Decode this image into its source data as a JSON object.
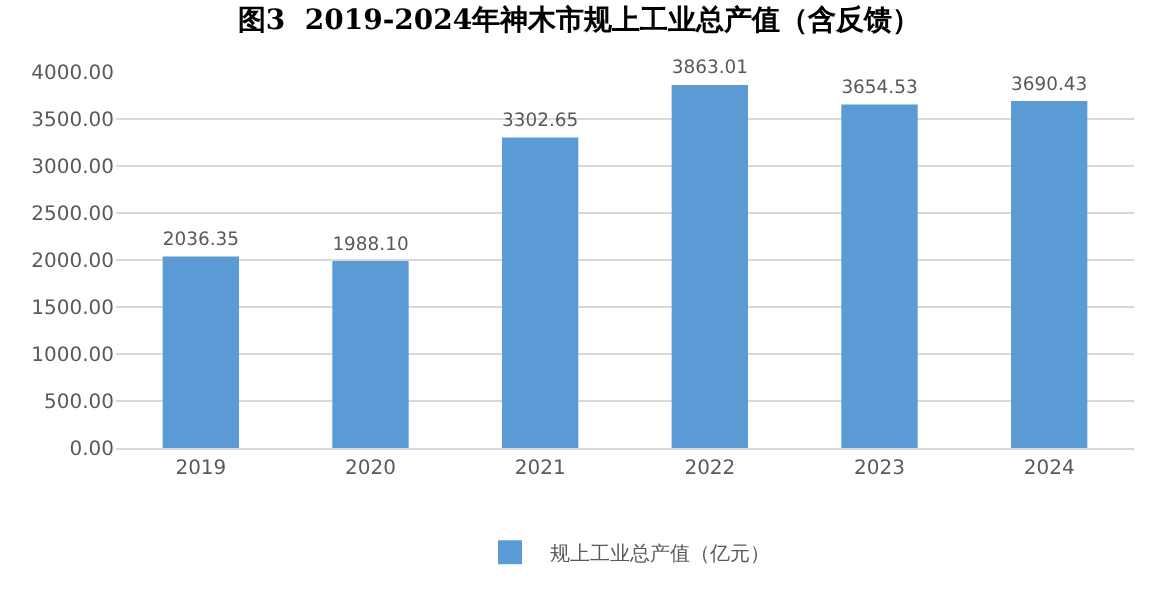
{
  "chart_data": {
    "type": "bar",
    "title": "图3  2019-2024年神木市规上工业总产值（含反馈）",
    "categories": [
      "2019",
      "2020",
      "2021",
      "2022",
      "2023",
      "2024"
    ],
    "series": [
      {
        "name": "规上工业总产值（亿元）",
        "color": "#5b9bd5",
        "values": [
          2036.35,
          1988.1,
          3302.65,
          3863.01,
          3654.53,
          3690.43
        ],
        "value_labels": [
          "2036.35",
          "1988.10",
          "3302.65",
          "3863.01",
          "3654.53",
          "3690.43"
        ]
      }
    ],
    "ylim": [
      0,
      4000
    ],
    "yticks": [
      {
        "value": 0,
        "label": "0.00"
      },
      {
        "value": 500,
        "label": "500.00"
      },
      {
        "value": 1000,
        "label": "1000.00"
      },
      {
        "value": 1500,
        "label": "1500.00"
      },
      {
        "value": 2000,
        "label": "2000.00"
      },
      {
        "value": 2500,
        "label": "2500.00"
      },
      {
        "value": 3000,
        "label": "3000.00"
      },
      {
        "value": 3500,
        "label": "3500.00"
      },
      {
        "value": 4000,
        "label": "4000.00"
      }
    ],
    "grid": "y",
    "legend": "bottom"
  }
}
